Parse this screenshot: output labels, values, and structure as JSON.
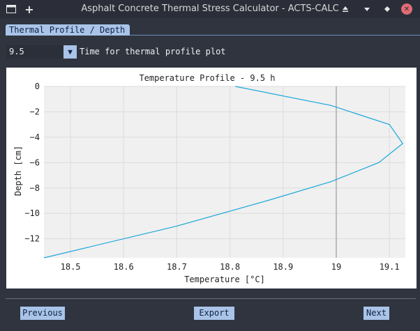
{
  "window": {
    "title": "Asphalt Concrete Thermal Stress Calculator - ACTS-CALC",
    "plus_label": "+",
    "close_label": "✕"
  },
  "tabs": [
    {
      "label": "Thermal Profile / Depth"
    }
  ],
  "time_selector": {
    "value": "9.5",
    "label": "Time for thermal profile plot"
  },
  "buttons": {
    "previous": "Previous",
    "export": "Export",
    "next": "Next"
  },
  "chart_data": {
    "type": "line",
    "title": "Temperature Profile - 9.5 h",
    "xlabel": "Temperature [°C]",
    "ylabel": "Depth [cm]",
    "xlim": [
      18.45,
      19.13
    ],
    "ylim": [
      -13.5,
      0
    ],
    "xticks": [
      18.5,
      18.6,
      18.7,
      18.8,
      18.9,
      19,
      19.1
    ],
    "xtick_labels": [
      "18.5",
      "18.6",
      "18.7",
      "18.8",
      "18.9",
      "19",
      "19.1"
    ],
    "yticks": [
      0,
      -2,
      -4,
      -6,
      -8,
      -10,
      -12
    ],
    "ytick_labels": [
      "0",
      "−2",
      "−4",
      "−6",
      "−8",
      "−10",
      "−12"
    ],
    "grid": true,
    "marker_line_x": 19,
    "series": [
      {
        "color": "#1aa7dc",
        "points": [
          [
            18.81,
            0
          ],
          [
            18.99,
            -1.5
          ],
          [
            19.1,
            -3
          ],
          [
            19.125,
            -4.5
          ],
          [
            19.08,
            -6
          ],
          [
            18.99,
            -7.5
          ],
          [
            18.87,
            -9
          ],
          [
            18.7,
            -11
          ],
          [
            18.45,
            -13.5
          ]
        ]
      }
    ]
  }
}
